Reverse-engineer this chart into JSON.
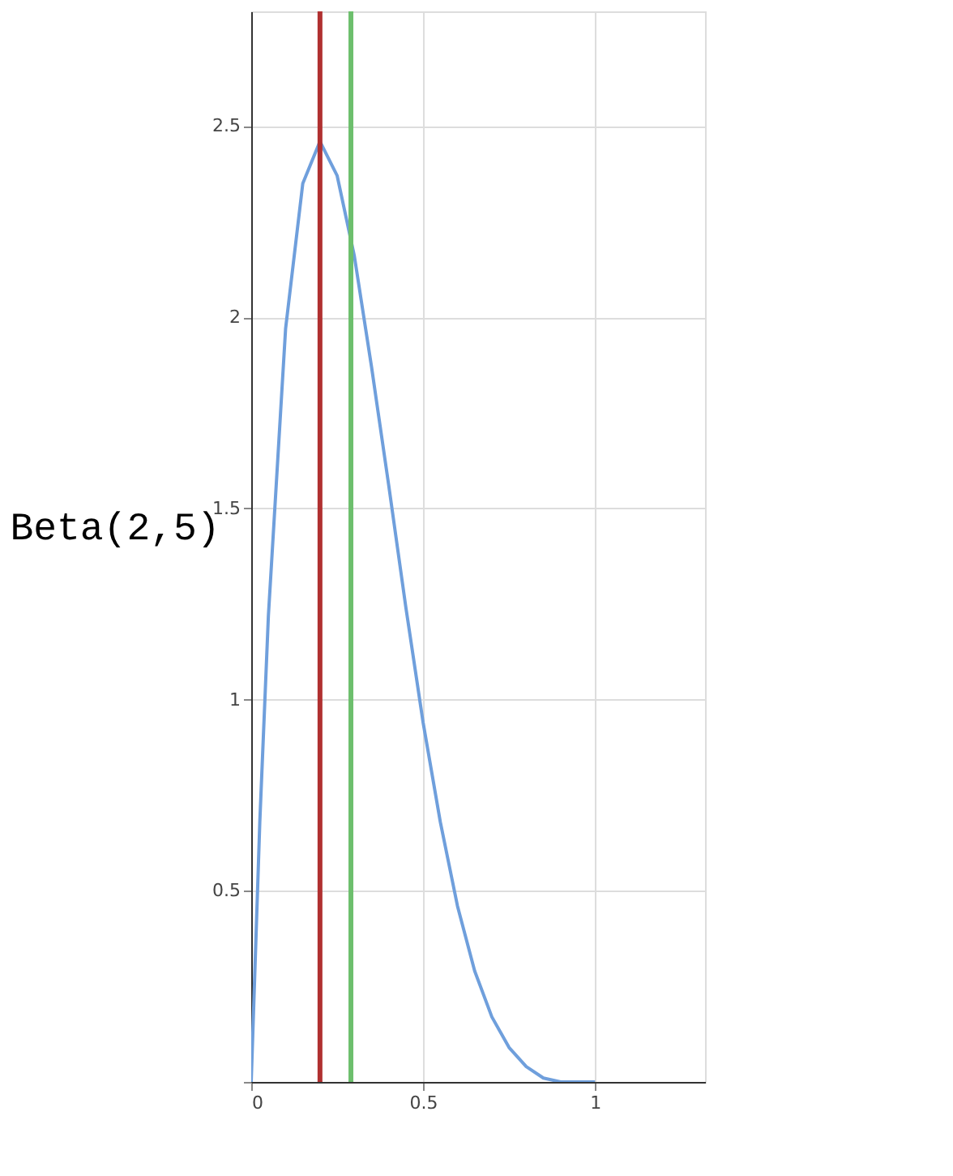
{
  "chart_data": {
    "type": "line",
    "ylabel": "Beta(2,5)",
    "x": [
      0,
      0.025,
      0.05,
      0.1,
      0.15,
      0.2,
      0.25,
      0.3,
      0.35,
      0.4,
      0.45,
      0.5,
      0.55,
      0.6,
      0.65,
      0.7,
      0.75,
      0.8,
      0.85,
      0.9,
      1
    ],
    "series": [
      {
        "color": "#6f9fdc",
        "values": [
          0,
          0.68,
          1.22,
          1.97,
          2.35,
          2.46,
          2.37,
          2.16,
          1.87,
          1.56,
          1.24,
          0.94,
          0.68,
          0.46,
          0.29,
          0.17,
          0.09,
          0.04,
          0.01,
          0,
          0
        ]
      }
    ],
    "xlim": [
      0,
      1.32
    ],
    "ylim": [
      0,
      2.8
    ],
    "xticks": [
      0,
      0.5,
      1
    ],
    "yticks": [
      {
        "value": 0,
        "label": null
      },
      0.5,
      1,
      1.5,
      2,
      2.5
    ],
    "ref_lines": [
      {
        "axis": "x",
        "value": 0.2,
        "color": "#b03030"
      },
      {
        "axis": "x",
        "value": 0.29,
        "color": "#6dbf6d"
      }
    ],
    "grid": true,
    "marker": "none",
    "line_style": "solid"
  }
}
